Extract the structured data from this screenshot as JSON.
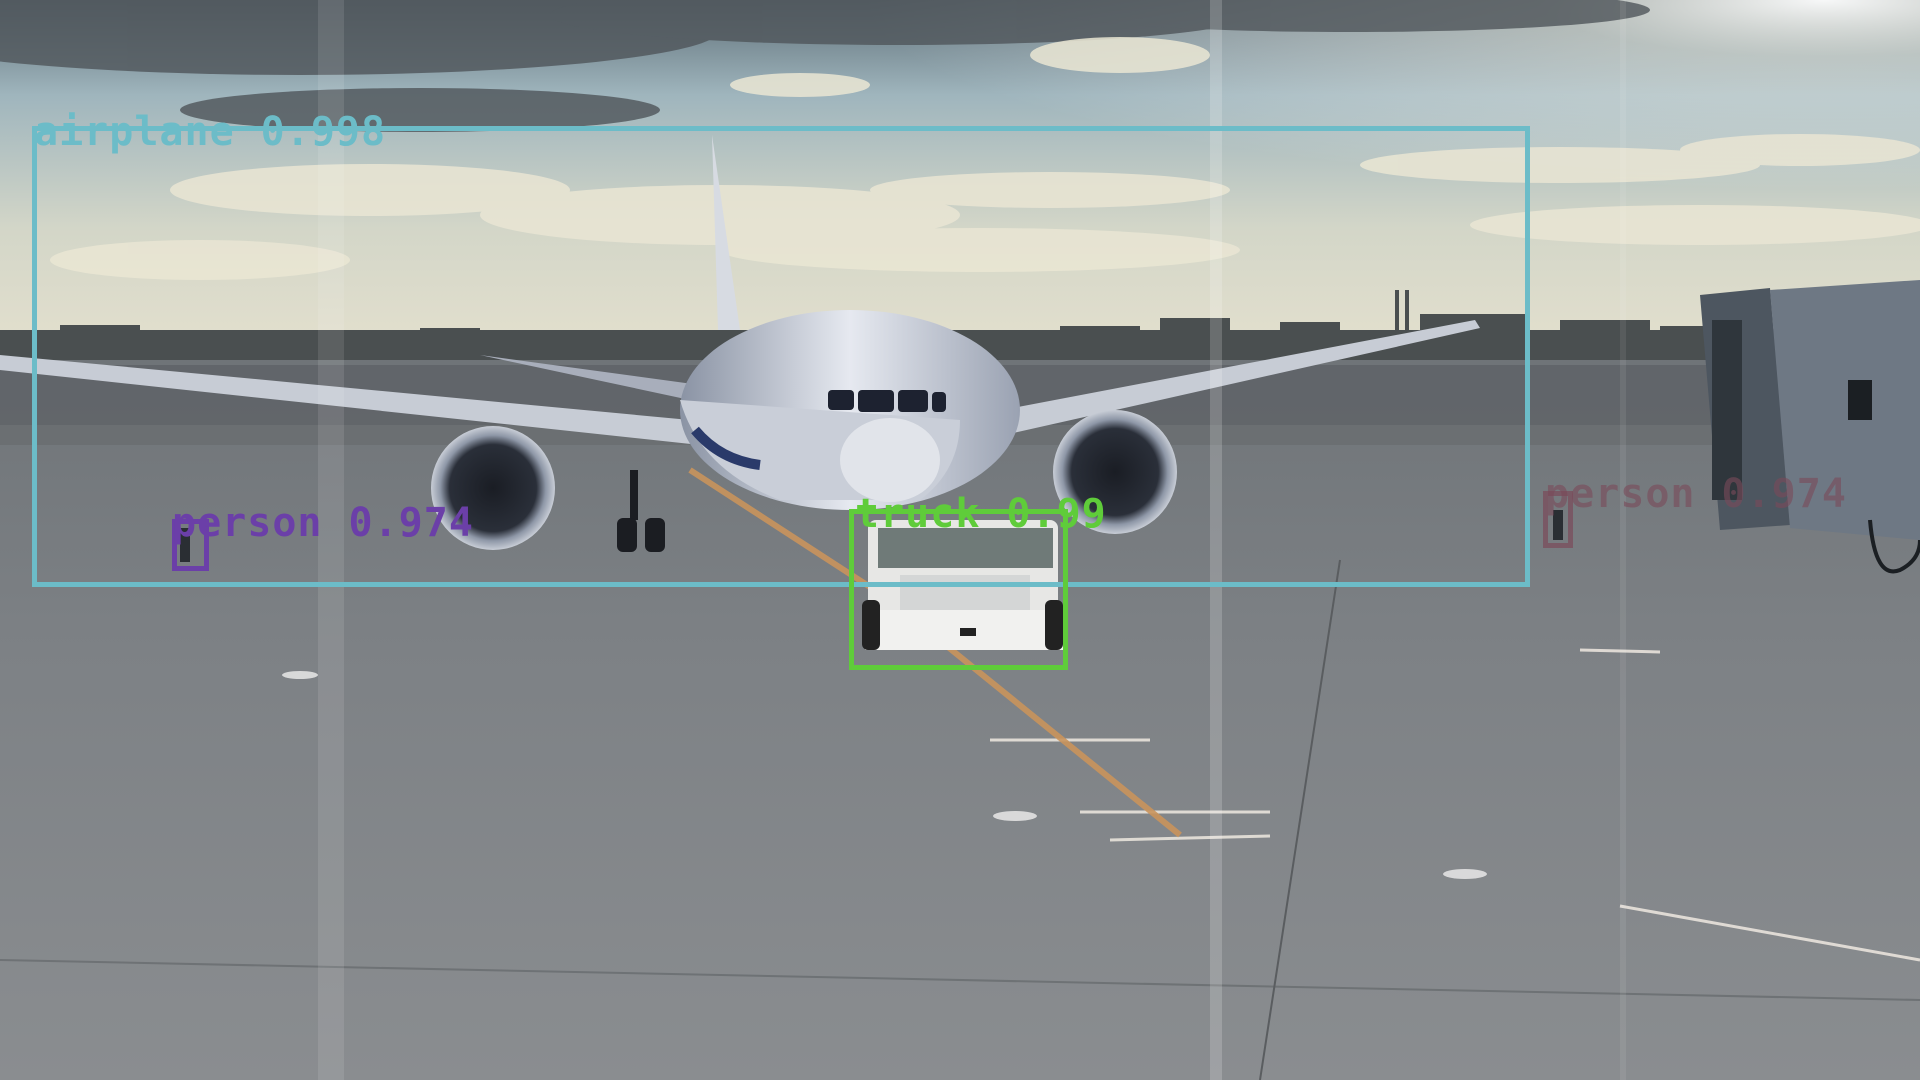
{
  "detections": [
    {
      "class": "airplane",
      "score": "0.998",
      "color": "#6cbcc8"
    },
    {
      "class": "truck",
      "score": "0.99",
      "color": "#5fcc3a"
    },
    {
      "class": "person",
      "score": "0.974",
      "color": "#6b3fa8"
    },
    {
      "class": "person",
      "score": "0.974",
      "color": "#7a4a5a"
    }
  ]
}
